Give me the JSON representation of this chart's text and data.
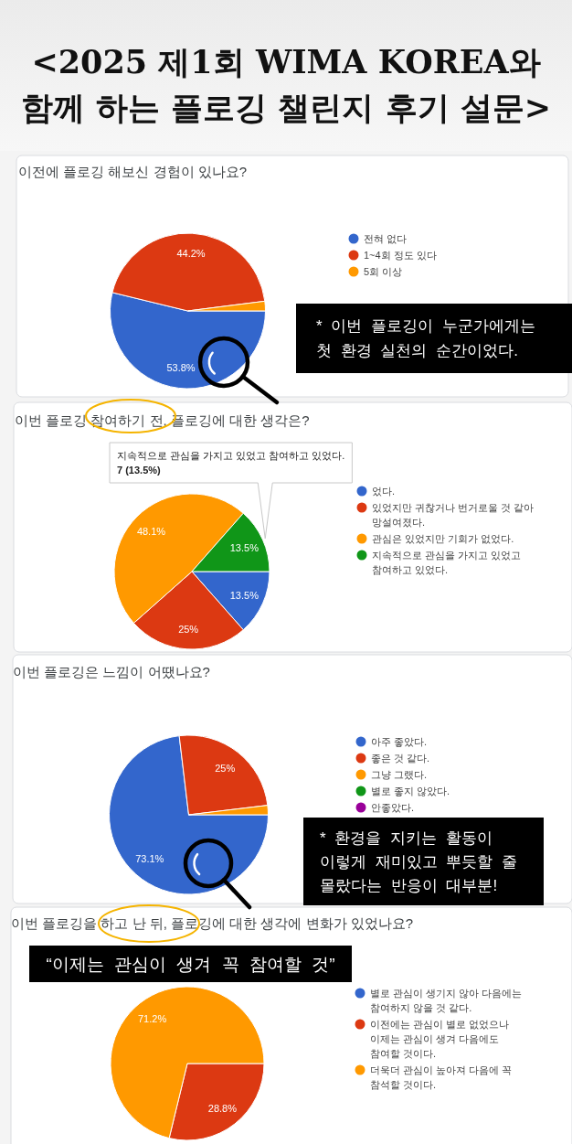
{
  "chart_data": [
    {
      "type": "other",
      "title": "<2025 제1회 WIMA KOREA와 함께 하는 플로깅 챌린지 후기 설문>"
    },
    {
      "type": "pie",
      "title": "이전에 플로깅 해보신 경험이 있나요?",
      "categories": [
        "전혀 없다",
        "1~4회 정도 있다",
        "5회 이상"
      ],
      "values": [
        53.8,
        44.2,
        2.0
      ],
      "colors": [
        "#3366cc",
        "#dc3912",
        "#ff9900"
      ],
      "value_labels": [
        "53.8%",
        "44.2%",
        null
      ],
      "legend": "right",
      "annotations": [
        "* 이번 플로깅이 누군가에게는 첫 환경 실천의 순간이었다."
      ]
    },
    {
      "type": "pie",
      "title": "이번 플로깅 참여하기 전, 플로깅에 대한 생각은?",
      "categories": [
        "었다.",
        "있었지만 귀찮거나 번거로울 것 같아 망설여졌다.",
        "관심은 있었지만 기회가 없었다.",
        "지속적으로 관심을 가지고 있었고 참여하고 있었다."
      ],
      "values": [
        13.5,
        25,
        48.1,
        13.5
      ],
      "colors": [
        "#3366cc",
        "#dc3912",
        "#ff9900",
        "#109618"
      ],
      "value_labels": [
        "13.5%",
        "25%",
        "48.1%",
        "13.5%"
      ],
      "legend": "right",
      "annotations": [
        "지속적으로 관심을 가지고 있었고 참여하고 있었다.",
        "7 (13.5%)"
      ]
    },
    {
      "type": "pie",
      "title": "이번 플로깅은 느낌이 어땠나요?",
      "categories": [
        "아주 좋았다.",
        "좋은 것 같다.",
        "그냥 그랬다.",
        "별로 좋지 않았다.",
        "안좋았다."
      ],
      "values": [
        73.1,
        25,
        1.9,
        0,
        0
      ],
      "colors": [
        "#3366cc",
        "#dc3912",
        "#ff9900",
        "#109618",
        "#990099"
      ],
      "value_labels": [
        "73.1%",
        "25%",
        null,
        null,
        null
      ],
      "legend": "right",
      "annotations": [
        "* 환경을 지키는 활동이 이렇게 재미있고 뿌듯할 줄 몰랐다는 반응이 대부분!"
      ]
    },
    {
      "type": "pie",
      "title": "이번 플로깅을 하고 난 뒤, 플로깅에 대한 생각에 변화가 있었나요?",
      "categories": [
        "별로 관심이 생기지 않아 다음에는 참여하지 않을 것 같다.",
        "이전에는 관심이 별로 없었으나 이제는 관심이 생겨 다음에도 참여할 것이다.",
        "더욱더 관심이 높아져 다음에 꼭 참석할 것이다."
      ],
      "values": [
        0,
        28.8,
        71.2
      ],
      "colors": [
        "#3366cc",
        "#dc3912",
        "#ff9900"
      ],
      "value_labels": [
        null,
        "28.8%",
        "71.2%"
      ],
      "legend": "right",
      "annotations": [
        "“이제는 관심이 생겨 꼭 참여할 것”"
      ]
    }
  ]
}
